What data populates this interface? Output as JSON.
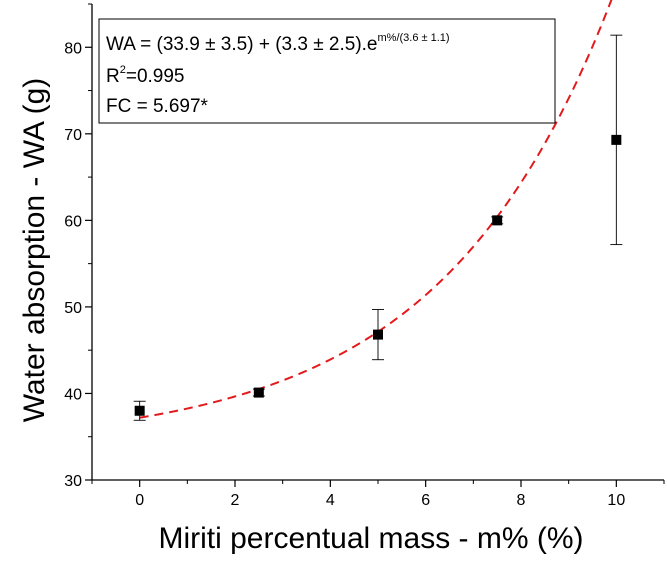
{
  "chart_data": {
    "type": "scatter",
    "xlabel": "Miriti percentual mass - m% (%)",
    "ylabel": "Water absorption - WA (g)",
    "xlim": [
      -1,
      11
    ],
    "ylim": [
      30,
      85
    ],
    "x_ticks": [
      "0",
      "2",
      "4",
      "6",
      "8",
      "10"
    ],
    "y_ticks": [
      "30",
      "40",
      "50",
      "60",
      "70",
      "80"
    ],
    "grid": false,
    "series": [
      {
        "x": [
          0,
          2.5,
          5,
          7.5,
          10
        ],
        "y": [
          38.0,
          40.1,
          46.8,
          60.0,
          69.3
        ],
        "error": [
          1.1,
          0.4,
          2.9,
          0.4,
          12.1
        ],
        "color": "#000000"
      }
    ],
    "fit": {
      "style": "dashed",
      "color": "#e31a1c",
      "a": 33.9,
      "b": 3.3,
      "c": 3.6
    },
    "annotation": {
      "eq_main": "WA = (33.9 ± 3.5) + (3.3 ± 2.5).e",
      "eq_sup": "m%/(3.6 ± 1.1)",
      "r2_prefix": "R",
      "r2_sup": "2",
      "r2_value": "=0.995",
      "fc": "FC = 5.697*"
    }
  }
}
